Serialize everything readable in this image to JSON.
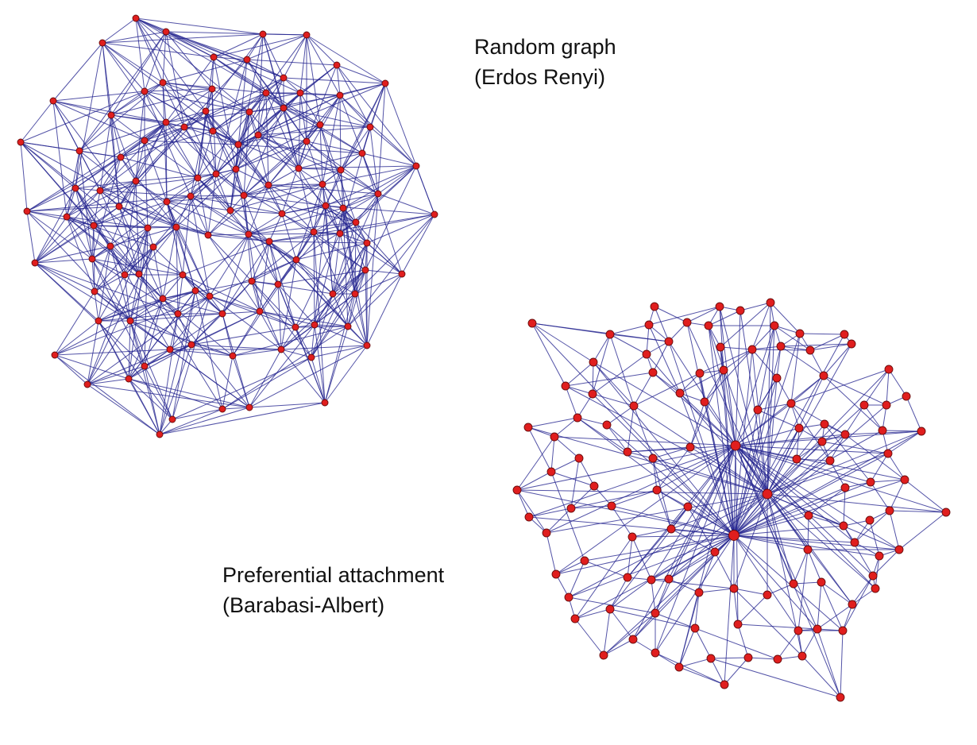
{
  "figure": {
    "random_graph": {
      "label_line1": "Random graph",
      "label_line2": "(Erdos Renyi)"
    },
    "preferential_attachment": {
      "label_line1": "Preferential attachment",
      "label_line2": "(Barabasi-Albert)"
    }
  },
  "colors": {
    "edge": "#23238e",
    "node_fill": "#e01e1e",
    "node_stroke": "#6a0c0c",
    "background": "#ffffff"
  }
}
